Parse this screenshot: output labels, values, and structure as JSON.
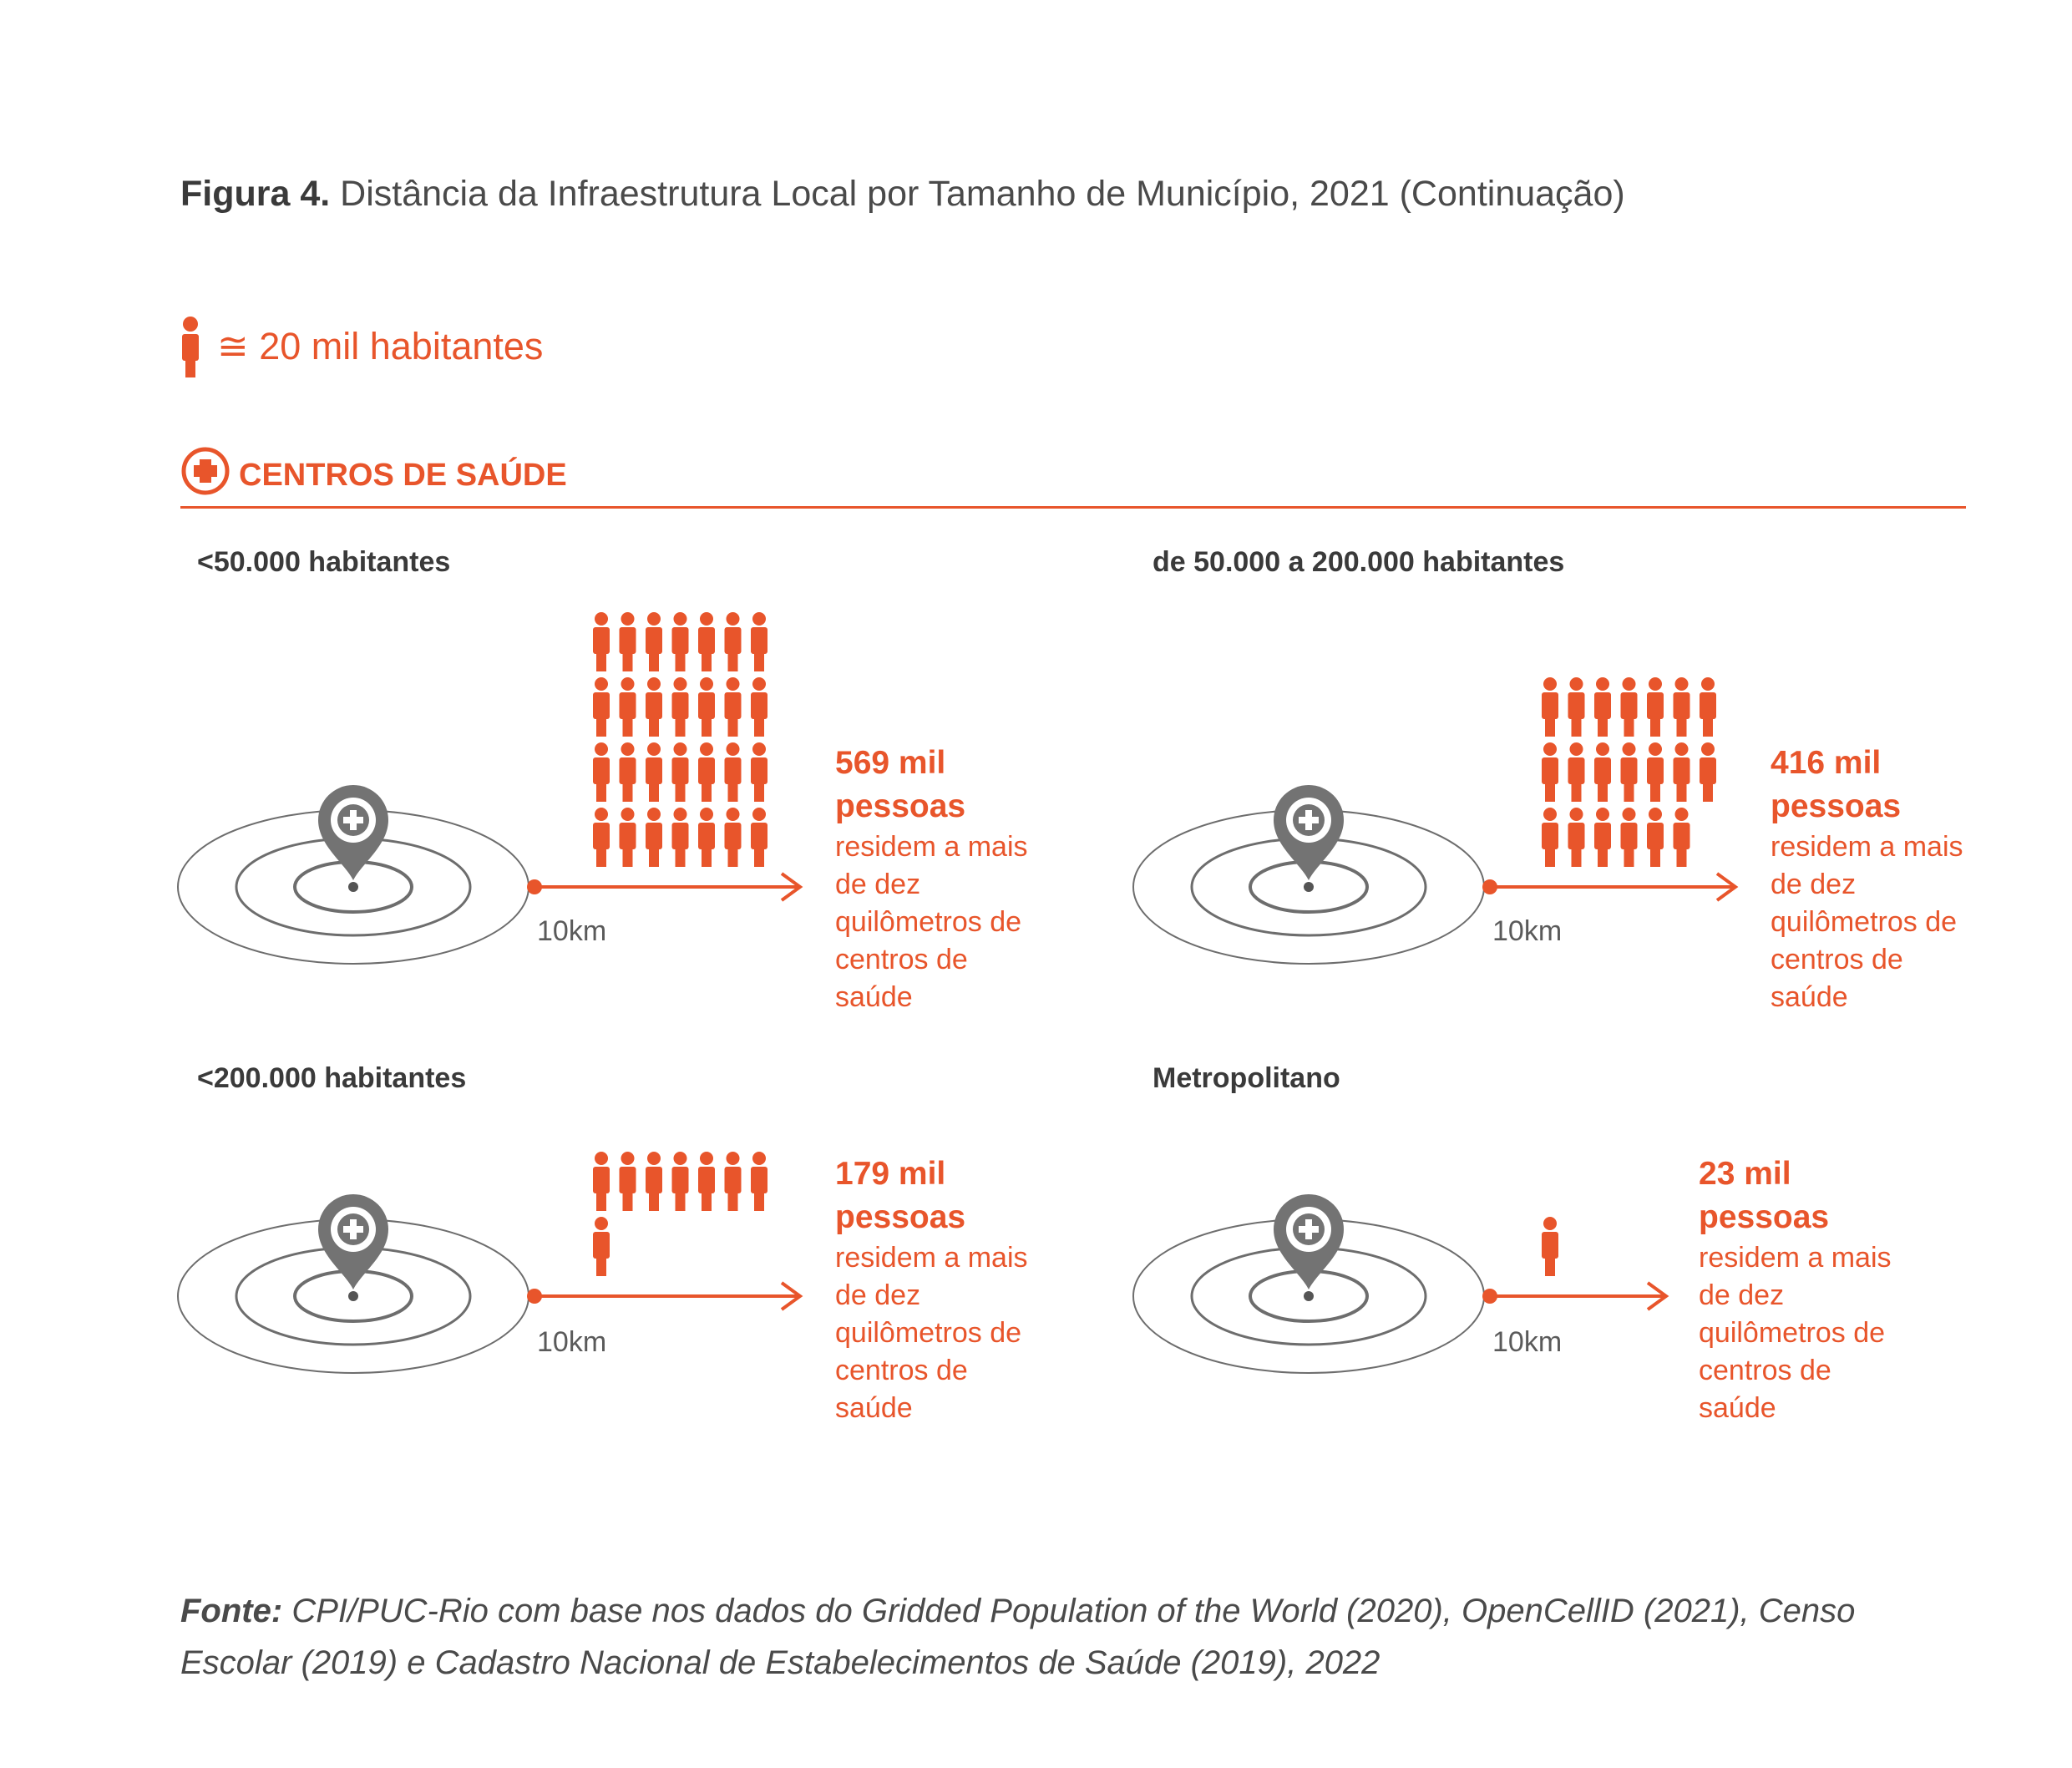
{
  "figure": {
    "label": "Figura 4.",
    "title": "Distância da Infraestrutura Local por Tamanho de Município, 2021 (Continuação)"
  },
  "legend": {
    "text": "≅ 20 mil habitantes",
    "icon": "person-icon"
  },
  "section": {
    "title": "CENTROS DE SAÚDE",
    "icon": "plus-circle-icon",
    "color": "#e8552b"
  },
  "panels": [
    {
      "title": "<50.000 habitantes",
      "distance": "10km",
      "people_count": 28,
      "count_line1": "569 mil",
      "count_line2": "pessoas",
      "description": "residem a mais de dez quilômetros de centros de saúde"
    },
    {
      "title": "de 50.000 a 200.000 habitantes",
      "distance": "10km",
      "people_count": 20,
      "count_line1": "416 mil",
      "count_line2": "pessoas",
      "description": "residem a mais de dez quilômetros de centros de saúde"
    },
    {
      "title": "<200.000 habitantes",
      "distance": "10km",
      "people_count": 8,
      "count_line1": "179 mil",
      "count_line2": "pessoas",
      "description": "residem a mais de dez quilômetros de centros de saúde"
    },
    {
      "title": "Metropolitano",
      "distance": "10km",
      "people_count": 1,
      "count_line1": "23 mil",
      "count_line2": "pessoas",
      "description": "residem a mais de dez quilômetros de centros de saúde"
    }
  ],
  "source": {
    "label": "Fonte:",
    "text": "CPI/PUC-Rio com base nos dados do Gridded Population of the World (2020), OpenCellID (2021), Censo Escolar (2019) e Cadastro Nacional de Estabelecimentos de Saúde (2019), 2022"
  },
  "colors": {
    "accent": "#e8552b",
    "gray": "#6d6d6d",
    "pin": "#737373"
  }
}
